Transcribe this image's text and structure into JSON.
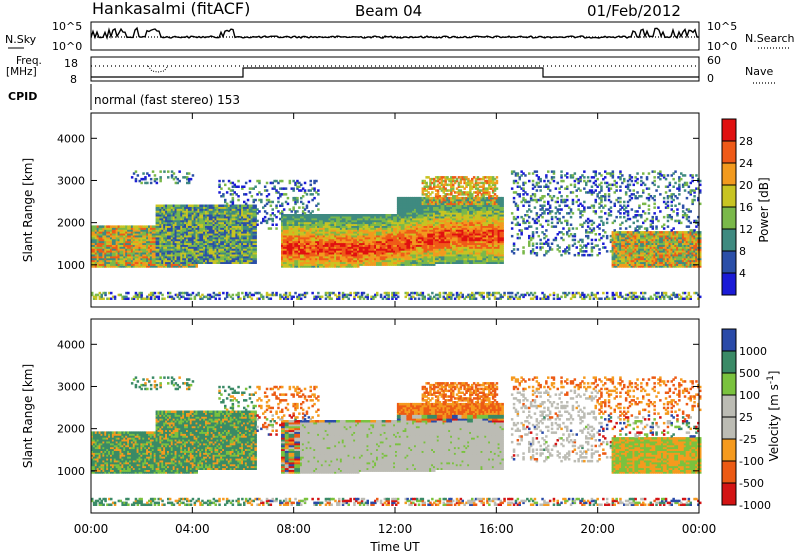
{
  "header": {
    "station": "Hankasalmi (fitACF)",
    "beam": "Beam 04",
    "date": "01/Feb/2012"
  },
  "top_panels": {
    "nsky_label": "N.Sky",
    "nsky_ticks": [
      "10^5",
      "10^0"
    ],
    "nsearch_label": "N.Search",
    "nsearch_ticks": [
      "10^5",
      "10^0"
    ],
    "freq_label_1": "Freq.",
    "freq_label_2": "[MHz]",
    "freq_ticks": [
      "18",
      "8"
    ],
    "nave_label": "Nave",
    "nave_ticks": [
      "60",
      "0"
    ],
    "cpid_label": "CPID",
    "cpid_text": "normal (fast stereo) 153"
  },
  "colors": {
    "power": [
      "#1b1bd6",
      "#2b4fa8",
      "#3f8a80",
      "#7ab84a",
      "#c8c422",
      "#f29a1e",
      "#ef5a18",
      "#e01010"
    ],
    "velocity": [
      "#d31414",
      "#ec5a14",
      "#f59a1e",
      "#bcbcb4",
      "#bcbcb4",
      "#7ac23e",
      "#3a8a66",
      "#2a4aa8"
    ]
  },
  "chart_data": [
    {
      "type": "heatmap",
      "ylabel": "Slant Range [km]",
      "x_ticks": [
        "00:00",
        "04:00",
        "08:00",
        "12:00",
        "16:00",
        "20:00",
        "00:00"
      ],
      "y_ticks": [
        "1000",
        "2000",
        "3000",
        "4000"
      ],
      "ylim": [
        0,
        4600
      ],
      "colorbar": {
        "label": "Power [dB]",
        "tick_labels": [
          "4",
          "8",
          "12",
          "16",
          "20",
          "24",
          "28"
        ]
      }
    },
    {
      "type": "heatmap",
      "ylabel": "Slant Range [km]",
      "xlabel": "Time UT",
      "x_ticks": [
        "00:00",
        "04:00",
        "08:00",
        "12:00",
        "16:00",
        "20:00",
        "00:00"
      ],
      "y_ticks": [
        "1000",
        "2000",
        "3000",
        "4000"
      ],
      "ylim": [
        0,
        4600
      ],
      "colorbar": {
        "label": "Velocity [m s^-1]",
        "tick_labels": [
          "1000",
          "500",
          "100",
          "25",
          "-25",
          "-100",
          "-500",
          "-1000"
        ]
      }
    }
  ]
}
